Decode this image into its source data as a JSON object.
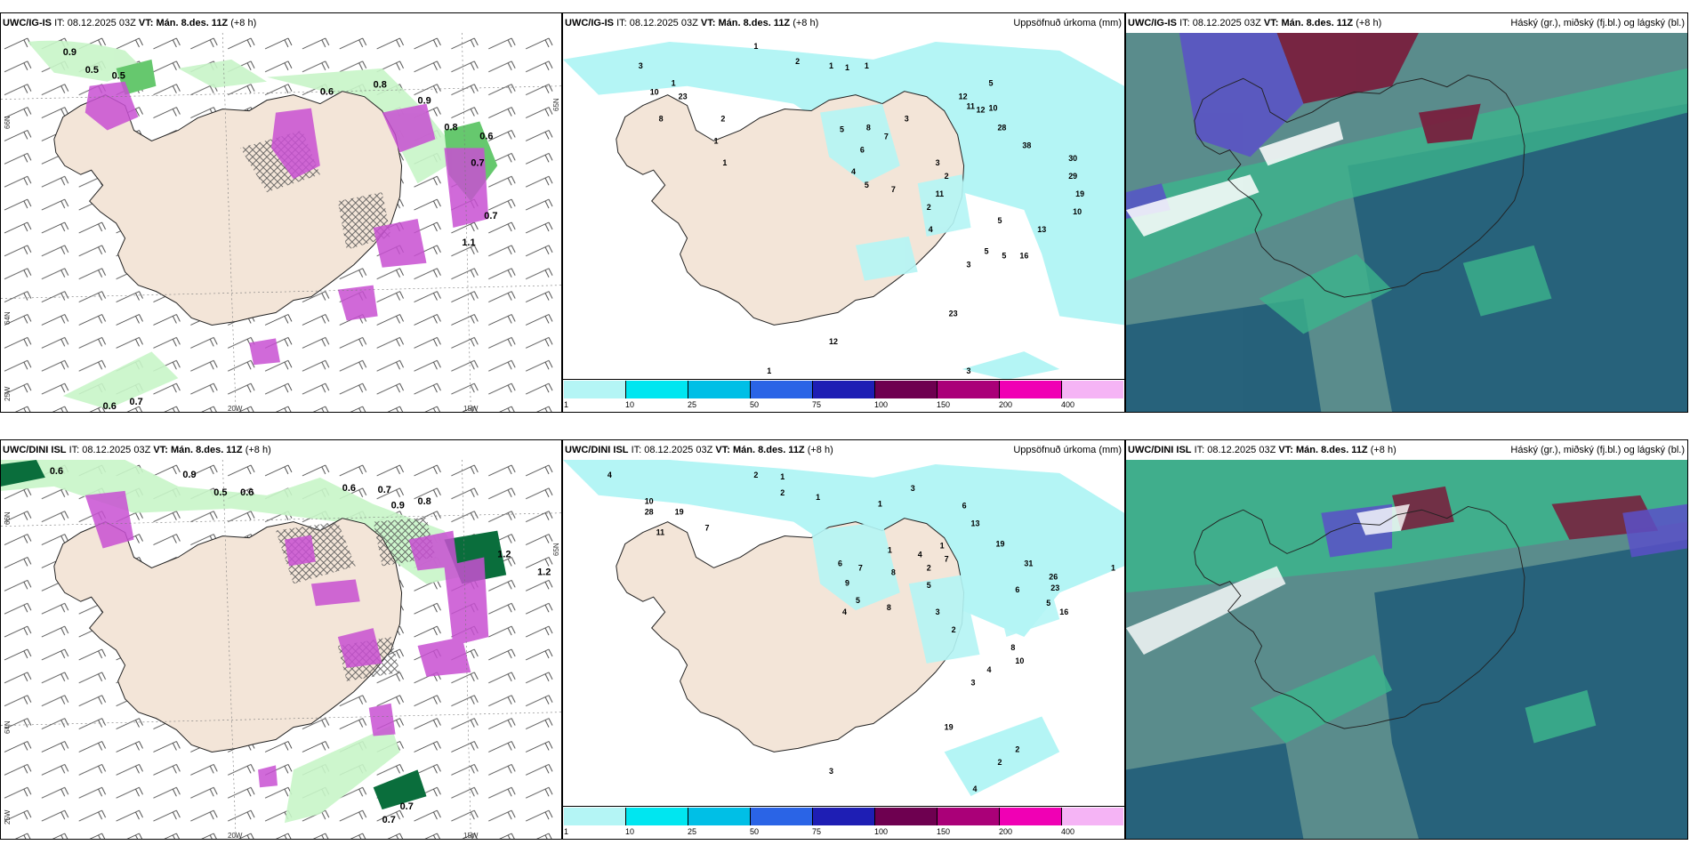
{
  "rows": [
    {
      "panels": [
        {
          "model": "UWC/IG-IS",
          "it_label": "IT:",
          "it_value": "08.12.2025 03Z",
          "vt_label": "VT:",
          "vt_value": "Mán. 8.des. 11Z",
          "lead": "(+8 h)",
          "right_title": "",
          "kind": "precip-wind",
          "lat_labels": [
            "66N",
            "64N",
            "65N"
          ],
          "lon_labels": [
            "25W",
            "20W",
            "15W"
          ],
          "values": [
            "0.9",
            "0.5",
            "0.5",
            "0.8",
            "0.9",
            "0.6",
            "0.7",
            "1.1",
            "0.6",
            "0.7",
            "0.8",
            "0.7",
            "0.6"
          ]
        },
        {
          "model": "UWC/IG-IS",
          "it_label": "IT:",
          "it_value": "08.12.2025 03Z",
          "vt_label": "VT:",
          "vt_value": "Mán. 8.des. 11Z",
          "lead": "(+8 h)",
          "right_title": "Uppsöfnuð úrkoma (mm)",
          "kind": "accum-precip",
          "values": [
            "3",
            "1",
            "2",
            "1",
            "1",
            "1",
            "1",
            "10",
            "23",
            "8",
            "2",
            "1",
            "1",
            "5",
            "8",
            "7",
            "6",
            "4",
            "5",
            "7",
            "3",
            "12",
            "11",
            "12",
            "10",
            "5",
            "28",
            "38",
            "30",
            "29",
            "19",
            "10",
            "13",
            "16",
            "5",
            "3",
            "2",
            "11",
            "4",
            "2",
            "3",
            "5",
            "5",
            "23",
            "12",
            "3",
            "1"
          ]
        },
        {
          "model": "UWC/IG-IS",
          "it_label": "IT:",
          "it_value": "08.12.2025 03Z",
          "vt_label": "VT:",
          "vt_value": "Mán. 8.des. 11Z",
          "lead": "(+8 h)",
          "right_title": "Háský (gr.), miðský (fj.bl.) og lágský (bl.)",
          "kind": "clouds"
        }
      ]
    },
    {
      "panels": [
        {
          "model": "UWC/DINI ISL",
          "it_label": "IT:",
          "it_value": "08.12.2025 03Z",
          "vt_label": "VT:",
          "vt_value": "Mán. 8.des. 11Z",
          "lead": "(+8 h)",
          "right_title": "",
          "kind": "precip-wind",
          "lat_labels": [
            "66N",
            "64N",
            "65N"
          ],
          "lon_labels": [
            "25W",
            "20W",
            "15W"
          ],
          "values": [
            "0.6",
            "0.9",
            "0.6",
            "0.6",
            "0.7",
            "0.8",
            "0.5",
            "1.2",
            "0.7",
            "0.7",
            "0.9",
            "1.2"
          ]
        },
        {
          "model": "UWC/DINI ISL",
          "it_label": "IT:",
          "it_value": "08.12.2025 03Z",
          "vt_label": "VT:",
          "vt_value": "Mán. 8.des. 11Z",
          "lead": "(+8 h)",
          "right_title": "Uppsöfnuð úrkoma (mm)",
          "kind": "accum-precip",
          "values": [
            "4",
            "2",
            "1",
            "2",
            "1",
            "3",
            "1",
            "10",
            "28",
            "19",
            "11",
            "7",
            "6",
            "7",
            "8",
            "9",
            "5",
            "4",
            "8",
            "1",
            "4",
            "2",
            "1",
            "7",
            "5",
            "3",
            "2",
            "6",
            "13",
            "19",
            "31",
            "26",
            "23",
            "16",
            "5",
            "6",
            "10",
            "8",
            "4",
            "3",
            "2",
            "2",
            "1",
            "4",
            "19",
            "3"
          ]
        },
        {
          "model": "UWC/DINI ISL",
          "it_label": "IT:",
          "it_value": "08.12.2025 03Z",
          "vt_label": "VT:",
          "vt_value": "Mán. 8.des. 11Z",
          "lead": "(+8 h)",
          "right_title": "Háský (gr.), miðský (fj.bl.) og lágský (bl.)",
          "kind": "clouds"
        }
      ]
    }
  ],
  "colorbar": {
    "ticks": [
      "1",
      "10",
      "25",
      "50",
      "75",
      "100",
      "150",
      "200",
      "400"
    ],
    "colors": [
      "#b4f5f5",
      "#00e6f0",
      "#00bfe6",
      "#2a64e6",
      "#1e1eb4",
      "#6e0050",
      "#aa0078",
      "#f000b4",
      "#f5b4f5"
    ]
  },
  "colors": {
    "land": "#f3e5d8",
    "coast": "#222222",
    "precip_light": "#c8f5c8",
    "precip_mid": "#66c86e",
    "precip_dark": "#0a6e3c",
    "precip_magenta": "#c850d2",
    "cyan_light": "#b4f5f5",
    "cloud_high": "#5a8c8c",
    "cloud_mid": "#1e5a78",
    "cloud_low": "#3cb48c",
    "cloud_dark": "#7a1a3a",
    "cloud_blue": "#5a50c8"
  }
}
